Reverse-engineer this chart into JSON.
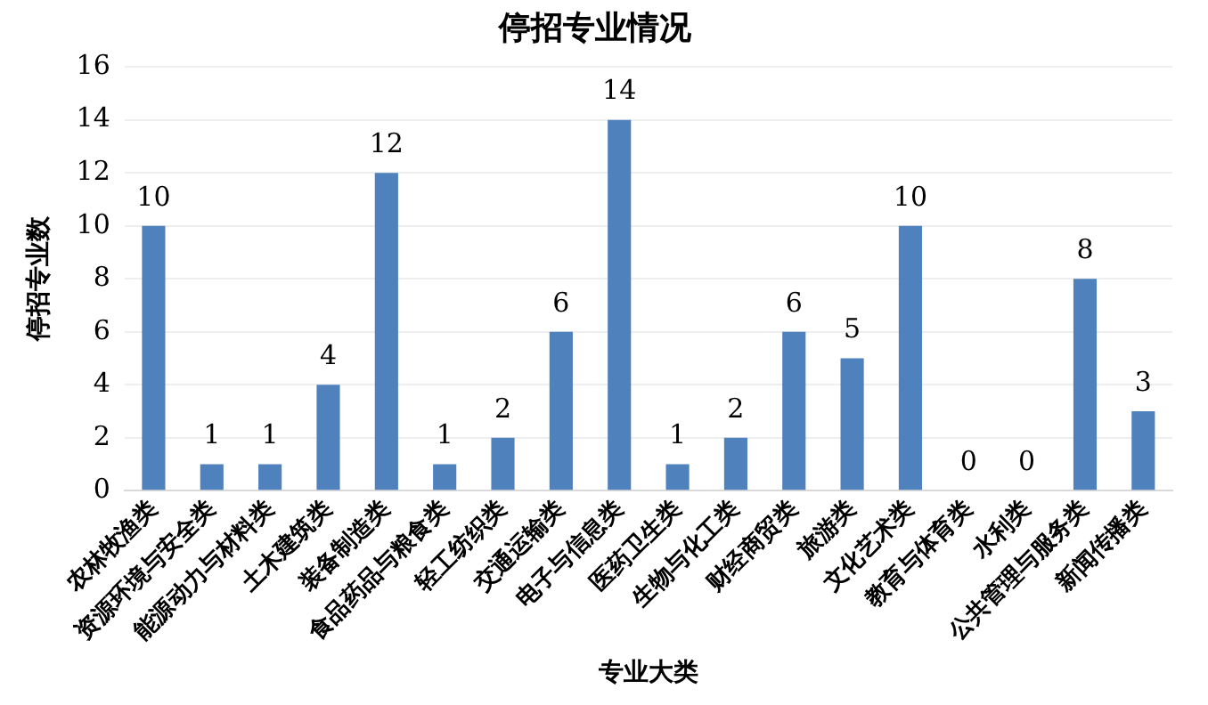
{
  "chart_data": {
    "type": "bar",
    "title": "停招专业情况",
    "xlabel": "专业大类",
    "ylabel": "停招专业数",
    "categories": [
      "农林牧渔类",
      "资源环境与安全类",
      "能源动力与材料类",
      "土木建筑类",
      "装备制造类",
      "食品药品与粮食类",
      "轻工纺织类",
      "交通运输类",
      "电子与信息类",
      "医药卫生类",
      "生物与化工类",
      "财经商贸类",
      "旅游类",
      "文化艺术类",
      "教育与体育类",
      "水利类",
      "公共管理与服务类",
      "新闻传播类"
    ],
    "values": [
      10,
      1,
      1,
      4,
      12,
      1,
      2,
      6,
      14,
      1,
      2,
      6,
      5,
      10,
      0,
      0,
      8,
      3
    ],
    "color": "#4f81bd",
    "ylim": [
      0,
      16
    ],
    "yticks": [
      0,
      2,
      4,
      6,
      8,
      10,
      12,
      14,
      16
    ],
    "grid": "y",
    "data_labels": true
  }
}
